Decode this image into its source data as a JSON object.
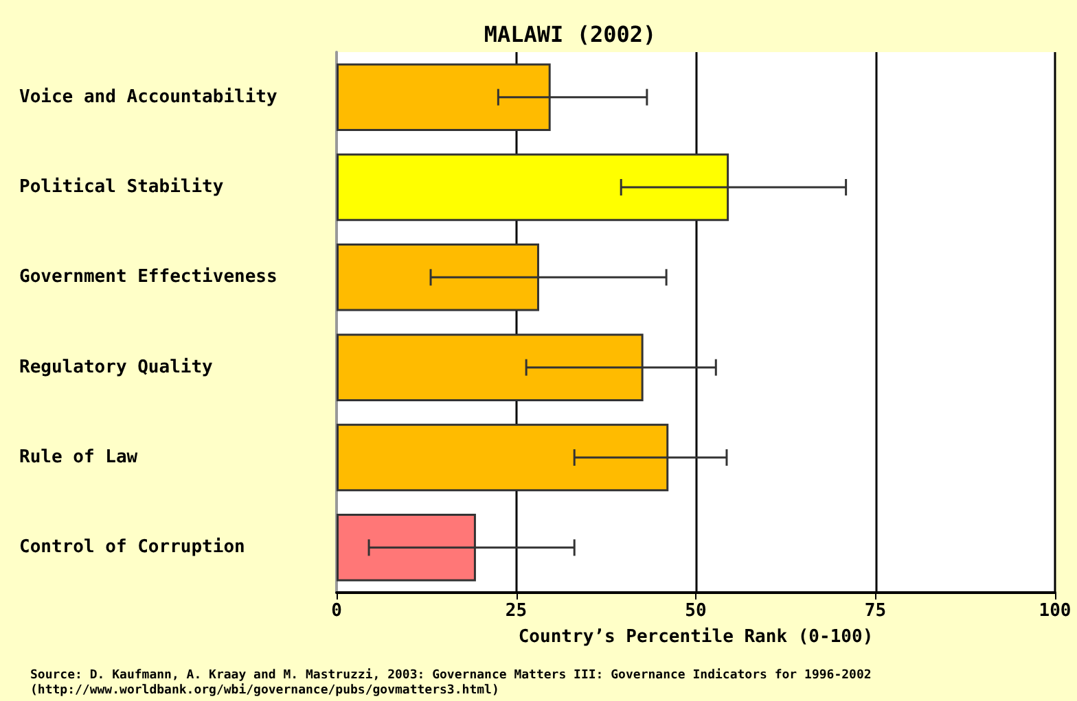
{
  "chart_data": {
    "type": "bar",
    "orientation": "horizontal",
    "title": "MALAWI (2002)",
    "xlabel": "Country’s Percentile Rank (0-100)",
    "categories": [
      "Voice and Accountability",
      "Political Stability",
      "Government Effectiveness",
      "Regulatory Quality",
      "Rule of Law",
      "Control of Corruption"
    ],
    "values": [
      29.8,
      54.6,
      28.2,
      42.7,
      46.2,
      19.4
    ],
    "colors": [
      "#ffbb00",
      "#ffff00",
      "#ffbb00",
      "#ffbb00",
      "#ffbb00",
      "#ff7777"
    ],
    "errors": [
      [
        22.5,
        43.2
      ],
      [
        39.6,
        70.9
      ],
      [
        13.1,
        45.9
      ],
      [
        26.4,
        52.8
      ],
      [
        33.1,
        54.3
      ],
      [
        4.5,
        33.1
      ]
    ],
    "xlim": [
      0,
      100
    ],
    "xticks": [
      0,
      25,
      50,
      75,
      100
    ],
    "grid": "x",
    "annotations": [
      "Source: D. Kaufmann, A. Kraay and M. Mastruzzi, 2003: Governance Matters III: Governance Indicators for 1996-2002",
      "(http://www.worldbank.org/wbi/governance/pubs/govmatters3.html)"
    ]
  }
}
